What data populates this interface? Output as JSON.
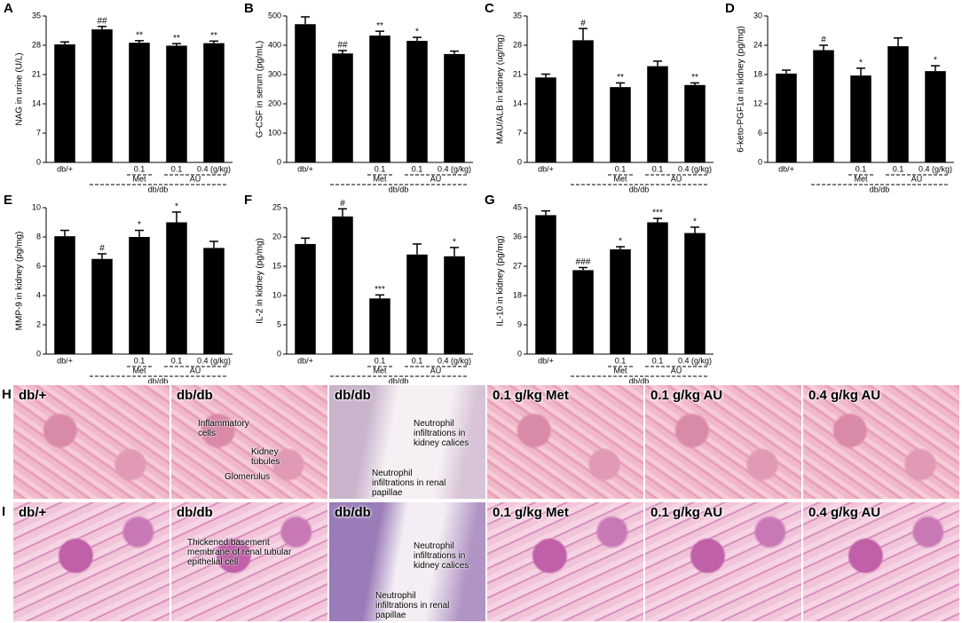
{
  "chart_data": [
    {
      "type": "bar",
      "panel": "A",
      "ylabel": "NAG in urine (U/L)",
      "categories": [
        "db/+",
        null,
        "0.1",
        "0.1",
        "0.4 (g/kg)"
      ],
      "group_labels": [
        "Met",
        "AU",
        "db/db"
      ],
      "values": [
        28.2,
        31.8,
        28.6,
        27.9,
        28.5
      ],
      "errors": [
        0.6,
        0.7,
        0.5,
        0.5,
        0.5
      ],
      "annotations": [
        null,
        "##",
        "**",
        "**",
        "**"
      ],
      "color": "#000000",
      "ylim": [
        0,
        35
      ],
      "yticks": [
        0,
        7,
        14,
        21,
        28,
        35
      ]
    },
    {
      "type": "bar",
      "panel": "B",
      "ylabel": "G-CSF in serum (pg/mL)",
      "categories": [
        "db/+",
        null,
        "0.1",
        "0.1",
        "0.4 (g/kg)"
      ],
      "group_labels": [
        "Met",
        "AU",
        "db/db"
      ],
      "values": [
        472,
        372,
        433,
        415,
        370
      ],
      "errors": [
        25,
        10,
        15,
        12,
        10
      ],
      "annotations": [
        null,
        "##",
        "**",
        "*",
        null
      ],
      "color": "#000000",
      "ylim": [
        0,
        500
      ],
      "yticks": [
        0,
        100,
        200,
        300,
        400,
        500
      ]
    },
    {
      "type": "bar",
      "panel": "C",
      "ylabel": "MAU/ALB in kidney (ug/mg)",
      "categories": [
        "db/+",
        null,
        "0.1",
        "0.1",
        "0.4 (g/kg)"
      ],
      "group_labels": [
        "Met",
        "AU",
        "db/db"
      ],
      "values": [
        20.3,
        29.2,
        18.0,
        23.0,
        18.5
      ],
      "errors": [
        0.8,
        2.8,
        1.0,
        1.2,
        0.5
      ],
      "annotations": [
        null,
        "#",
        "**",
        null,
        "**"
      ],
      "color": "#000000",
      "ylim": [
        0,
        35
      ],
      "yticks": [
        0,
        7,
        14,
        21,
        28,
        35
      ]
    },
    {
      "type": "bar",
      "panel": "D",
      "ylabel": "6-keto-PGF1α in kidney (pg/mg)",
      "categories": [
        "db/+",
        null,
        "0.1",
        "0.1",
        "0.4 (g/kg)"
      ],
      "group_labels": [
        "Met",
        "AU",
        "db/db"
      ],
      "values": [
        18.2,
        23.0,
        17.8,
        23.8,
        18.7
      ],
      "errors": [
        0.7,
        1.0,
        1.5,
        1.7,
        1.1
      ],
      "annotations": [
        null,
        "#",
        "*",
        null,
        "*"
      ],
      "color": "#000000",
      "ylim": [
        0,
        30
      ],
      "yticks": [
        0,
        6,
        12,
        18,
        24,
        30
      ]
    },
    {
      "type": "bar",
      "panel": "E",
      "ylabel": "MMP-9 in kidney (pg/mg)",
      "categories": [
        "db/+",
        null,
        "0.1",
        "0.1",
        "0.4 (g/kg)"
      ],
      "group_labels": [
        "Met",
        "AU",
        "db/db"
      ],
      "values": [
        8.05,
        6.5,
        8.0,
        9.0,
        7.25
      ],
      "errors": [
        0.4,
        0.35,
        0.45,
        0.7,
        0.45
      ],
      "annotations": [
        null,
        "#",
        "*",
        "*",
        null
      ],
      "color": "#000000",
      "ylim": [
        0,
        10
      ],
      "yticks": [
        0,
        2,
        4,
        6,
        8,
        10
      ]
    },
    {
      "type": "bar",
      "panel": "F",
      "ylabel": "IL-2 in kidney (pg/mg)",
      "categories": [
        "db/+",
        null,
        "0.1",
        "0.1",
        "0.4 (g/kg)"
      ],
      "group_labels": [
        "Met",
        "AU",
        "db/db"
      ],
      "values": [
        18.8,
        23.5,
        9.5,
        17.0,
        16.7
      ],
      "errors": [
        1.0,
        1.3,
        0.6,
        1.8,
        1.5
      ],
      "annotations": [
        null,
        "#",
        "***",
        null,
        "*"
      ],
      "color": "#000000",
      "ylim": [
        0,
        25
      ],
      "yticks": [
        0,
        5,
        10,
        15,
        20,
        25
      ]
    },
    {
      "type": "bar",
      "panel": "G",
      "ylabel": "IL-10 in kidney (pg/mg)",
      "categories": [
        "db/+",
        null,
        "0.1",
        "0.1",
        "0.4 (g/kg)"
      ],
      "group_labels": [
        "Met",
        "AU",
        "db/db"
      ],
      "values": [
        42.7,
        25.8,
        32.2,
        40.5,
        37.2
      ],
      "errors": [
        1.3,
        0.8,
        0.8,
        1.2,
        1.8
      ],
      "annotations": [
        null,
        "###",
        "*",
        "***",
        "*"
      ],
      "color": "#000000",
      "ylim": [
        0,
        45
      ],
      "yticks": [
        0,
        9,
        18,
        27,
        36,
        45
      ]
    }
  ],
  "histology": {
    "rows": [
      {
        "label": "H",
        "panels": [
          {
            "title": "db/+",
            "notes": []
          },
          {
            "title": "db/db",
            "notes": [
              "Inflammatory cells",
              "Kidney tubules",
              "Glomerulus"
            ]
          },
          {
            "title": "db/db",
            "notes": [
              "Neutrophil infiltrations in kidney calices",
              "Neutrophil infiltrations in renal papillae"
            ]
          },
          {
            "title": "0.1 g/kg Met",
            "notes": []
          },
          {
            "title": "0.1 g/kg AU",
            "notes": []
          },
          {
            "title": "0.4 g/kg AU",
            "notes": []
          }
        ]
      },
      {
        "label": "I",
        "panels": [
          {
            "title": "db/+",
            "notes": []
          },
          {
            "title": "db/db",
            "notes": [
              "Thickened basement membrane of renal tubular epithelial cell"
            ]
          },
          {
            "title": "db/db",
            "notes": [
              "Neutrophil infiltrations in kidney calices",
              "Neutrophil infiltrations in renal papillae"
            ]
          },
          {
            "title": "0.1 g/kg Met",
            "notes": []
          },
          {
            "title": "0.1 g/kg AU",
            "notes": []
          },
          {
            "title": "0.4 g/kg AU",
            "notes": []
          }
        ]
      }
    ]
  }
}
